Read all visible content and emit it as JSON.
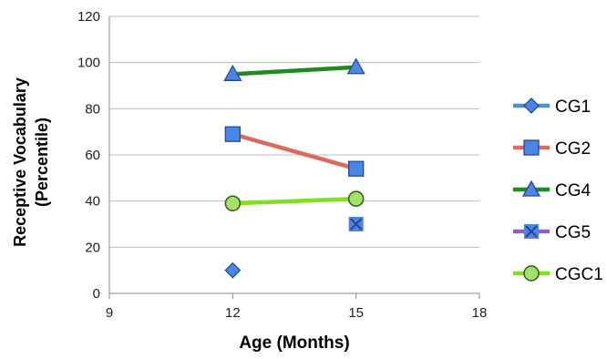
{
  "chart_data": {
    "type": "line",
    "xlabel": "Age (Months)",
    "ylabel_lines": [
      "Receptive Vocabulary",
      "(Percentile)"
    ],
    "xlim": [
      9,
      18
    ],
    "ylim": [
      0,
      120
    ],
    "x_ticks": [
      "9",
      "12",
      "15",
      "18"
    ],
    "y_ticks": [
      "0",
      "20",
      "40",
      "60",
      "80",
      "100",
      "120"
    ],
    "grid": "horizontal",
    "legend_position": "right",
    "series": [
      {
        "name": "CG1",
        "color": "#4f8fd6",
        "marker": "diamond",
        "points": [
          [
            12,
            10
          ]
        ]
      },
      {
        "name": "CG2",
        "color": "#d96a5e",
        "marker": "square",
        "points": [
          [
            12,
            69
          ],
          [
            15,
            54
          ]
        ]
      },
      {
        "name": "CG4",
        "color": "#1f8a1f",
        "marker": "triangle",
        "points": [
          [
            12,
            95
          ],
          [
            15,
            98
          ]
        ]
      },
      {
        "name": "CG5",
        "color": "#8c63b8",
        "marker": "x",
        "points": [
          [
            15,
            30
          ]
        ]
      },
      {
        "name": "CGC1",
        "color": "#7ee11a",
        "marker": "circle",
        "points": [
          [
            12,
            39
          ],
          [
            15,
            41
          ]
        ]
      }
    ]
  }
}
